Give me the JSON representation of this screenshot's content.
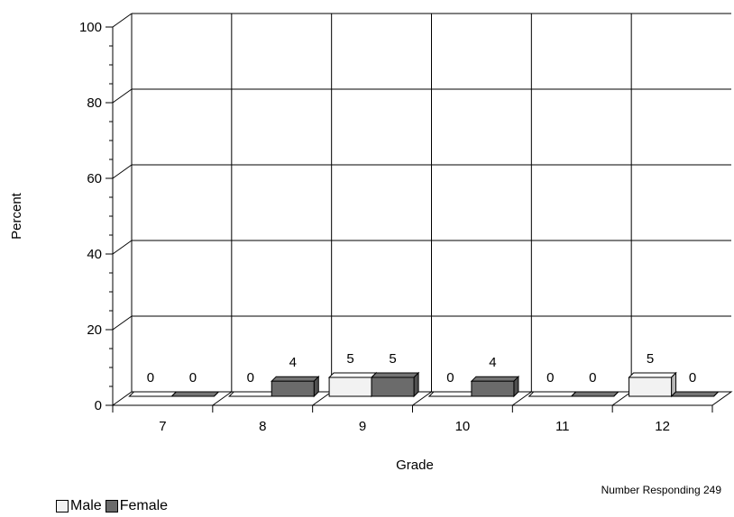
{
  "chart_data": {
    "type": "bar",
    "title": "",
    "xlabel": "Grade",
    "ylabel": "Percent",
    "ylim": [
      0,
      100
    ],
    "yticks": [
      0,
      20,
      40,
      60,
      80,
      100
    ],
    "categories": [
      "7",
      "8",
      "9",
      "10",
      "11",
      "12"
    ],
    "series": [
      {
        "name": "Male",
        "values": [
          0,
          0,
          5,
          0,
          0,
          5
        ],
        "color": "#f2f2f2"
      },
      {
        "name": "Female",
        "values": [
          0,
          4,
          5,
          4,
          0,
          0
        ],
        "color": "#6b6b6b"
      }
    ],
    "grid": true,
    "legend_position": "bottom-left",
    "note": "Number Responding 249"
  }
}
